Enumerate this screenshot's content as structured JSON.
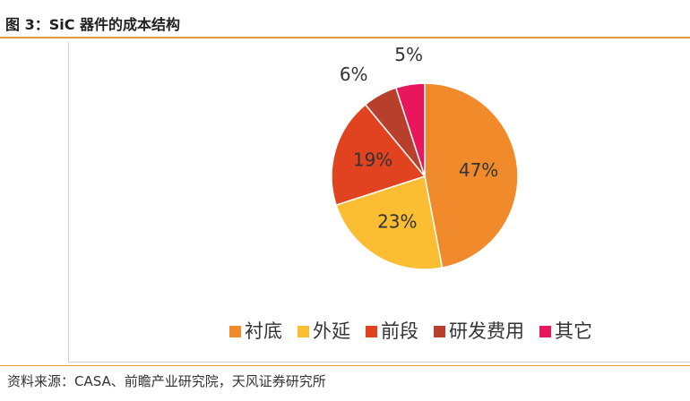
{
  "header": {
    "title": "图 3：SiC 器件的成本结构"
  },
  "footer": {
    "source": "资料来源：CASA、前瞻产业研究院，天风证券研究所"
  },
  "chart_data": {
    "type": "pie",
    "categories": [
      "衬底",
      "外延",
      "前段",
      "研发费用",
      "其它"
    ],
    "values": [
      47,
      23,
      19,
      6,
      5
    ],
    "labels": [
      "47%",
      "23%",
      "19%",
      "6%",
      "5%"
    ],
    "colors": [
      "#f08a2a",
      "#fbbd31",
      "#e1421f",
      "#b83f2b",
      "#e8175d"
    ],
    "legend_position": "bottom"
  }
}
